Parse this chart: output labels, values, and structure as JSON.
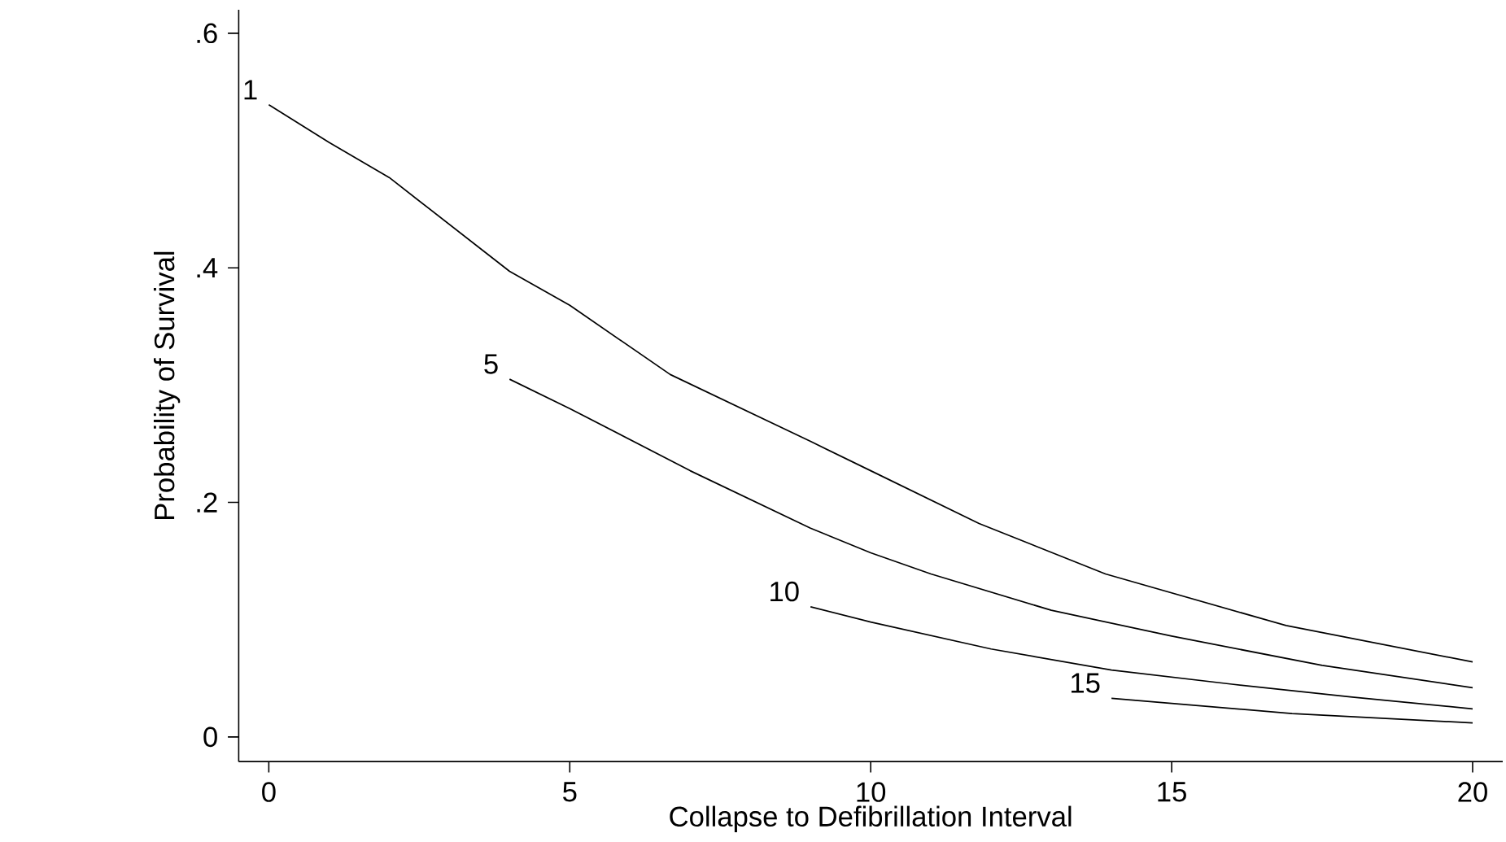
{
  "chart_data": {
    "type": "line",
    "xlabel": "Collapse to Defibrillation Interval",
    "ylabel": "Probability of Survival",
    "xlim": [
      -0.5,
      20.5
    ],
    "ylim": [
      -0.021,
      0.62
    ],
    "xticks": [
      0,
      5,
      10,
      15,
      20
    ],
    "yticks": [
      {
        "value": 0,
        "label": "0"
      },
      {
        "value": 0.2,
        "label": ".2"
      },
      {
        "value": 0.4,
        "label": ".4"
      },
      {
        "value": 0.6,
        "label": ".6"
      }
    ],
    "grid": false,
    "legend": false,
    "marker": "none",
    "line_style": "solid",
    "series": [
      {
        "name": "1",
        "color": "#000000",
        "x": [
          0,
          1,
          2,
          4,
          5,
          6.67,
          9,
          10,
          11.8,
          13.9,
          16.9,
          20
        ],
        "values": [
          0.539,
          0.507,
          0.477,
          0.397,
          0.368,
          0.309,
          0.252,
          0.227,
          0.182,
          0.139,
          0.095,
          0.064
        ]
      },
      {
        "name": "5",
        "color": "#000000",
        "x": [
          4,
          5,
          7,
          9,
          10,
          11,
          13,
          15,
          17.5,
          20
        ],
        "values": [
          0.305,
          0.28,
          0.227,
          0.178,
          0.157,
          0.139,
          0.108,
          0.086,
          0.061,
          0.042
        ]
      },
      {
        "name": "10",
        "color": "#000000",
        "x": [
          9,
          10,
          12,
          14,
          16,
          18,
          20
        ],
        "values": [
          0.111,
          0.098,
          0.075,
          0.057,
          0.045,
          0.034,
          0.024
        ]
      },
      {
        "name": "15",
        "color": "#000000",
        "x": [
          14,
          17,
          20
        ],
        "values": [
          0.033,
          0.02,
          0.012
        ]
      }
    ]
  }
}
